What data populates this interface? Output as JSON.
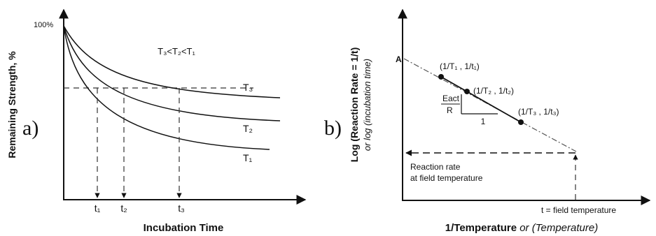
{
  "panel_a": {
    "label": "a)",
    "y_axis_label": "Remaining Strength, %",
    "x_axis_label": "Incubation Time",
    "y_tick_top": "100%",
    "relation_label": "T₃<T₂<T₁",
    "curves": [
      {
        "name": "T₃"
      },
      {
        "name": "T₂"
      },
      {
        "name": "T₁"
      }
    ],
    "time_marks": [
      {
        "name": "t₁"
      },
      {
        "name": "t₂"
      },
      {
        "name": "t₃"
      }
    ]
  },
  "panel_b": {
    "label": "b)",
    "y_axis_label_main": "Log (Reaction Rate = 1/t)",
    "y_axis_label_alt": "or log (incubation time)",
    "x_axis_label_main": "1/Temperature",
    "x_axis_label_alt": " or (Temperature)",
    "intercept_label": "A",
    "points": [
      {
        "label": "(1/T₁ , 1/t₁)"
      },
      {
        "label": "(1/T₂ , 1/t₂)"
      },
      {
        "label": "(1/T₃ , 1/t₃)"
      }
    ],
    "slope_numerator": "Eact",
    "slope_denominator": "R",
    "slope_run": "1",
    "field_rate_line1": "Reaction rate",
    "field_rate_line2": "at field temperature",
    "field_temp_label": "t = field temperature"
  }
}
